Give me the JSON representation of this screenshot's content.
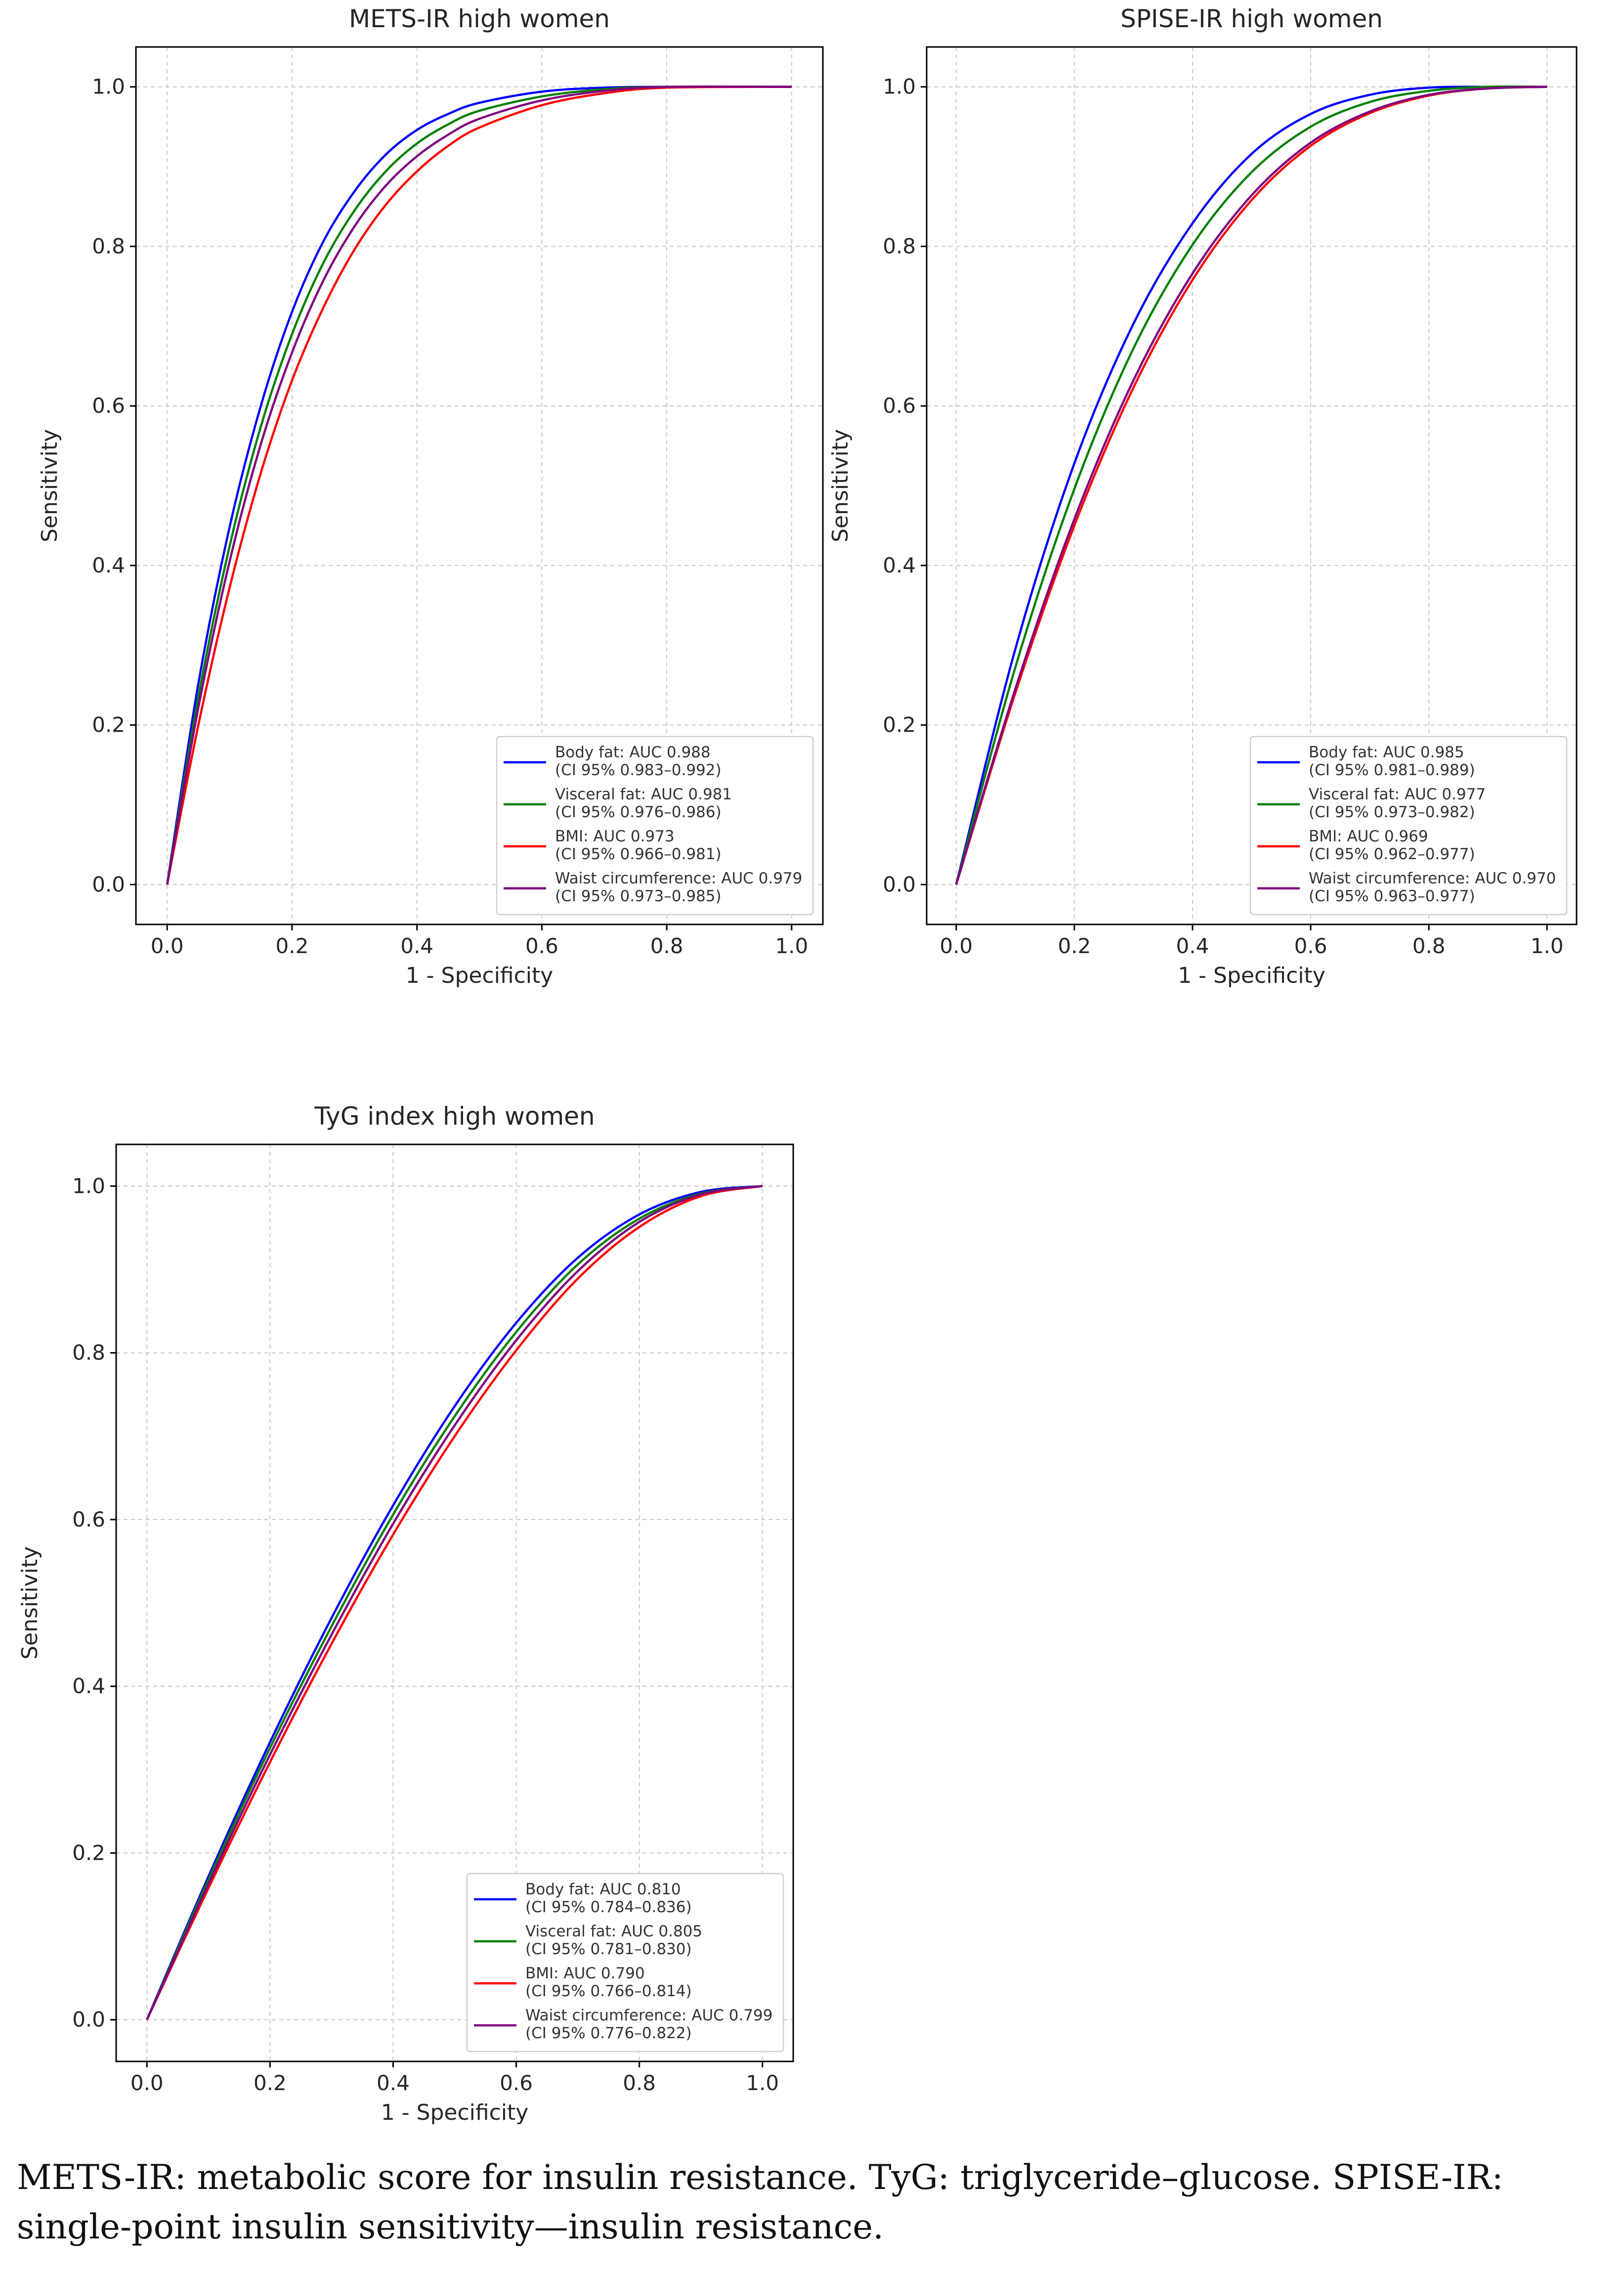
{
  "caption": "METS-IR: metabolic score for insulin resistance. TyG: triglyceride–glucose. SPISE-IR: single-point insulin sensitivity—insulin resistance.",
  "chart_data": [
    {
      "type": "line",
      "title": "METS-IR high women",
      "xlabel": "1 - Specificity",
      "ylabel": "Sensitivity",
      "xlim": [
        0.0,
        1.0
      ],
      "ylim": [
        0.0,
        1.0
      ],
      "xticks": [
        "0.0",
        "0.2",
        "0.4",
        "0.6",
        "0.8",
        "1.0"
      ],
      "yticks": [
        "0.0",
        "0.2",
        "0.4",
        "0.6",
        "0.8",
        "1.0"
      ],
      "grid": true,
      "legend_position": "bottom-right",
      "series": [
        {
          "name": "Body fat",
          "label": "Body fat: AUC 0.988",
          "ci": "(CI 95% 0.983–0.992)",
          "color": "#0000ff",
          "x": [
            0,
            0.05,
            0.1,
            0.15,
            0.2,
            0.25,
            0.3,
            0.35,
            0.4,
            0.45,
            0.5,
            0.6,
            0.7,
            0.8,
            1.0
          ],
          "y": [
            0,
            0.252,
            0.448,
            0.6,
            0.718,
            0.806,
            0.869,
            0.915,
            0.946,
            0.966,
            0.98,
            0.994,
            0.999,
            1.0,
            1.0
          ]
        },
        {
          "name": "Visceral fat",
          "label": "Visceral fat: AUC 0.981",
          "ci": "(CI 95% 0.976–0.986)",
          "color": "#008000",
          "x": [
            0,
            0.05,
            0.1,
            0.15,
            0.2,
            0.25,
            0.3,
            0.35,
            0.4,
            0.45,
            0.5,
            0.6,
            0.7,
            0.8,
            1.0
          ],
          "y": [
            0,
            0.235,
            0.424,
            0.574,
            0.69,
            0.779,
            0.845,
            0.894,
            0.929,
            0.953,
            0.97,
            0.988,
            0.997,
            1.0,
            1.0
          ]
        },
        {
          "name": "BMI",
          "label": "BMI: AUC 0.973",
          "ci": "(CI 95% 0.966–0.981)",
          "color": "#ff0000",
          "x": [
            0,
            0.05,
            0.1,
            0.15,
            0.2,
            0.25,
            0.3,
            0.35,
            0.4,
            0.45,
            0.5,
            0.6,
            0.7,
            0.8,
            1.0
          ],
          "y": [
            0,
            0.2,
            0.372,
            0.516,
            0.632,
            0.723,
            0.796,
            0.852,
            0.894,
            0.926,
            0.949,
            0.977,
            0.992,
            0.999,
            1.0
          ]
        },
        {
          "name": "Waist circumference",
          "label": "Waist circumference: AUC 0.979",
          "ci": "(CI 95% 0.973–0.985)",
          "color": "#800080",
          "x": [
            0,
            0.05,
            0.1,
            0.15,
            0.2,
            0.25,
            0.3,
            0.35,
            0.4,
            0.45,
            0.5,
            0.6,
            0.7,
            0.8,
            1.0
          ],
          "y": [
            0,
            0.222,
            0.405,
            0.552,
            0.667,
            0.757,
            0.825,
            0.876,
            0.913,
            0.94,
            0.96,
            0.983,
            0.995,
            1.0,
            1.0
          ]
        }
      ]
    },
    {
      "type": "line",
      "title": "SPISE-IR high women",
      "xlabel": "1 - Specificity",
      "ylabel": "Sensitivity",
      "xlim": [
        0.0,
        1.0
      ],
      "ylim": [
        0.0,
        1.0
      ],
      "xticks": [
        "0.0",
        "0.2",
        "0.4",
        "0.6",
        "0.8",
        "1.0"
      ],
      "yticks": [
        "0.0",
        "0.2",
        "0.4",
        "0.6",
        "0.8",
        "1.0"
      ],
      "grid": true,
      "legend_position": "bottom-right",
      "series": [
        {
          "name": "Body fat",
          "label": "Body fat: AUC 0.985",
          "ci": "(CI 95% 0.981–0.989)",
          "color": "#0000ff",
          "x": [
            0,
            0.1,
            0.2,
            0.3,
            0.4,
            0.5,
            0.6,
            0.7,
            0.8,
            0.9,
            1.0
          ],
          "y": [
            0,
            0.295,
            0.528,
            0.703,
            0.829,
            0.916,
            0.966,
            0.99,
            0.999,
            1.0,
            1.0
          ]
        },
        {
          "name": "Visceral fat",
          "label": "Visceral fat: AUC 0.977",
          "ci": "(CI 95% 0.973–0.982)",
          "color": "#008000",
          "x": [
            0,
            0.1,
            0.2,
            0.3,
            0.4,
            0.5,
            0.6,
            0.7,
            0.8,
            0.9,
            1.0
          ],
          "y": [
            0,
            0.272,
            0.496,
            0.672,
            0.802,
            0.893,
            0.95,
            0.981,
            0.995,
            1.0,
            1.0
          ]
        },
        {
          "name": "BMI",
          "label": "BMI: AUC 0.969",
          "ci": "(CI 95% 0.962–0.977)",
          "color": "#ff0000",
          "x": [
            0,
            0.1,
            0.2,
            0.3,
            0.4,
            0.5,
            0.6,
            0.7,
            0.8,
            0.9,
            1.0
          ],
          "y": [
            0,
            0.24,
            0.45,
            0.623,
            0.758,
            0.858,
            0.926,
            0.967,
            0.989,
            0.998,
            1.0
          ]
        },
        {
          "name": "Waist circumference",
          "label": "Waist circumference: AUC 0.970",
          "ci": "(CI 95% 0.963–0.977)",
          "color": "#800080",
          "x": [
            0,
            0.1,
            0.2,
            0.3,
            0.4,
            0.5,
            0.6,
            0.7,
            0.8,
            0.9,
            1.0
          ],
          "y": [
            0,
            0.245,
            0.458,
            0.632,
            0.766,
            0.864,
            0.93,
            0.969,
            0.99,
            0.998,
            1.0
          ]
        }
      ]
    },
    {
      "type": "line",
      "title": "TyG index high women",
      "xlabel": "1 - Specificity",
      "ylabel": "Sensitivity",
      "xlim": [
        0.0,
        1.0
      ],
      "ylim": [
        0.0,
        1.0
      ],
      "xticks": [
        "0.0",
        "0.2",
        "0.4",
        "0.6",
        "0.8",
        "1.0"
      ],
      "yticks": [
        "0.0",
        "0.2",
        "0.4",
        "0.6",
        "0.8",
        "1.0"
      ],
      "grid": true,
      "legend_position": "bottom-right",
      "series": [
        {
          "name": "Body fat",
          "label": "Body fat: AUC 0.810",
          "ci": "(CI 95% 0.784–0.836)",
          "color": "#0000ff",
          "x": [
            0,
            0.1,
            0.2,
            0.3,
            0.4,
            0.5,
            0.6,
            0.7,
            0.8,
            0.9,
            1.0
          ],
          "y": [
            0,
            0.172,
            0.333,
            0.482,
            0.617,
            0.736,
            0.836,
            0.914,
            0.966,
            0.993,
            1.0
          ]
        },
        {
          "name": "Visceral fat",
          "label": "Visceral fat: AUC 0.805",
          "ci": "(CI 95% 0.781–0.830)",
          "color": "#008000",
          "x": [
            0,
            0.1,
            0.2,
            0.3,
            0.4,
            0.5,
            0.6,
            0.7,
            0.8,
            0.9,
            1.0
          ],
          "y": [
            0,
            0.168,
            0.326,
            0.472,
            0.606,
            0.724,
            0.825,
            0.906,
            0.961,
            0.991,
            1.0
          ]
        },
        {
          "name": "BMI",
          "label": "BMI: AUC 0.790",
          "ci": "(CI 95% 0.766–0.814)",
          "color": "#ff0000",
          "x": [
            0,
            0.1,
            0.2,
            0.3,
            0.4,
            0.5,
            0.6,
            0.7,
            0.8,
            0.9,
            1.0
          ],
          "y": [
            0,
            0.158,
            0.309,
            0.451,
            0.582,
            0.7,
            0.803,
            0.889,
            0.951,
            0.988,
            1.0
          ]
        },
        {
          "name": "Waist circumference",
          "label": "Waist circumference: AUC 0.799",
          "ci": "(CI 95% 0.776–0.822)",
          "color": "#800080",
          "x": [
            0,
            0.1,
            0.2,
            0.3,
            0.4,
            0.5,
            0.6,
            0.7,
            0.8,
            0.9,
            1.0
          ],
          "y": [
            0,
            0.163,
            0.318,
            0.462,
            0.595,
            0.713,
            0.815,
            0.898,
            0.957,
            0.99,
            1.0
          ]
        }
      ]
    }
  ]
}
